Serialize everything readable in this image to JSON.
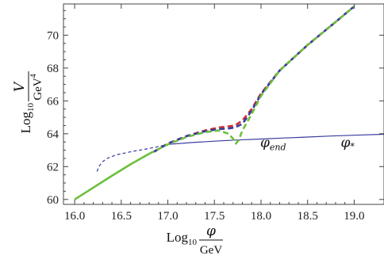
{
  "chart_data": {
    "type": "line",
    "xlabel": {
      "main": "Log",
      "sub": "10",
      "num": "φ",
      "den": "GeV"
    },
    "ylabel": {
      "main": "Log",
      "sub": "10",
      "num": "V",
      "den": "GeV",
      "den_sup": "4"
    },
    "xlim": [
      15.88,
      19.32
    ],
    "ylim": [
      59.7,
      71.9
    ],
    "xticks": [
      16.0,
      16.5,
      17.0,
      17.5,
      18.0,
      18.5,
      19.0
    ],
    "xtick_labels": [
      "16.0",
      "16.5",
      "17.0",
      "17.5",
      "18.0",
      "18.5",
      "19.0"
    ],
    "yticks": [
      60,
      62,
      64,
      66,
      68,
      70
    ],
    "ytick_labels": [
      "60",
      "62",
      "64",
      "66",
      "68",
      "70"
    ],
    "grid": false,
    "annotations": [
      {
        "symbol": "φ",
        "sub": "end",
        "x": 18.13,
        "y": 63.2
      },
      {
        "symbol": "φ",
        "sub": "*",
        "x": 18.93,
        "y": 63.2
      }
    ],
    "series": [
      {
        "color": "#3a3aa0",
        "style": "solid",
        "width": 1.2,
        "x": [
          17.0,
          17.25,
          17.5,
          17.75,
          18.0,
          18.25,
          18.5,
          18.75,
          19.0,
          19.32
        ],
        "y": [
          63.35,
          63.46,
          63.55,
          63.62,
          63.68,
          63.74,
          63.8,
          63.86,
          63.91,
          63.97
        ]
      },
      {
        "color": "#3a3aa0",
        "style": "dashed",
        "width": 1.2,
        "x": [
          16.24,
          16.26,
          16.3,
          16.35,
          16.45,
          16.6,
          16.75,
          16.9,
          17.0
        ],
        "y": [
          61.7,
          62.0,
          62.3,
          62.5,
          62.72,
          62.9,
          63.05,
          63.22,
          63.35
        ]
      },
      {
        "color": "#d03030",
        "style": "dashed",
        "width": 2.6,
        "x": [
          16.85,
          17.0,
          17.2,
          17.4,
          17.55,
          17.65,
          17.72,
          17.8,
          17.9,
          18.0,
          18.2,
          18.5,
          18.8,
          19.0
        ],
        "y": [
          62.9,
          63.4,
          63.85,
          64.2,
          64.38,
          64.45,
          64.5,
          64.8,
          65.5,
          66.45,
          67.85,
          69.4,
          70.8,
          71.75
        ]
      },
      {
        "color": "#3a3aa0",
        "style": "dashed",
        "width": 2.6,
        "x": [
          16.85,
          17.0,
          17.2,
          17.4,
          17.55,
          17.65,
          17.72,
          17.8,
          17.9,
          18.0,
          18.2,
          18.5,
          18.8,
          19.0
        ],
        "y": [
          62.9,
          63.4,
          63.85,
          64.15,
          64.28,
          64.32,
          64.38,
          64.6,
          65.4,
          66.4,
          67.85,
          69.4,
          70.8,
          71.75
        ]
      },
      {
        "color": "#6cbf3c",
        "style": "solid",
        "width": 2.6,
        "x": [
          16.0,
          16.2,
          16.4,
          16.6,
          16.8
        ],
        "y": [
          60.0,
          60.72,
          61.44,
          62.14,
          62.78
        ]
      },
      {
        "color": "#6cbf3c",
        "style": "dashed",
        "width": 2.6,
        "x": [
          16.8,
          17.0,
          17.2,
          17.4,
          17.55,
          17.65,
          17.7,
          17.73,
          17.76,
          17.8,
          17.9,
          18.0,
          18.2,
          18.5,
          18.8,
          19.0
        ],
        "y": [
          62.78,
          63.35,
          63.8,
          64.1,
          64.2,
          64.0,
          63.7,
          63.4,
          63.6,
          64.2,
          65.2,
          66.3,
          67.85,
          69.4,
          70.8,
          71.75
        ]
      }
    ]
  }
}
